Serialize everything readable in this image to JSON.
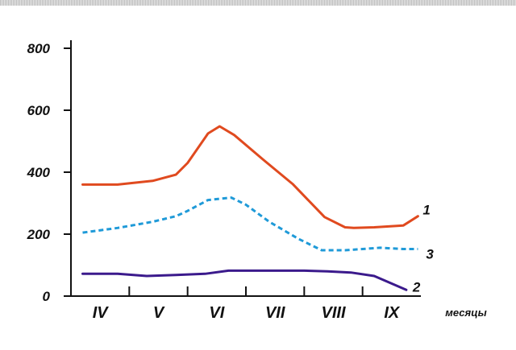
{
  "chart_data": {
    "type": "line",
    "xlabel": "месяцы",
    "ylabel": "",
    "ylim": [
      0,
      800
    ],
    "yticks": [
      0,
      200,
      400,
      600,
      800
    ],
    "categories": [
      "IV",
      "V",
      "VI",
      "VII",
      "VIII",
      "IX"
    ],
    "xlim": [
      0,
      6
    ],
    "grid": false,
    "series": [
      {
        "name": "1",
        "color": "#e04a1f",
        "style": "solid",
        "x": [
          0.2,
          0.8,
          1.4,
          1.8,
          2.0,
          2.35,
          2.55,
          2.8,
          3.3,
          3.8,
          4.35,
          4.7,
          4.85,
          5.2,
          5.7,
          5.95
        ],
        "y": [
          360,
          360,
          372,
          392,
          430,
          525,
          548,
          520,
          440,
          362,
          255,
          222,
          220,
          222,
          228,
          258
        ]
      },
      {
        "name": "3",
        "color": "#1f9ad8",
        "style": "dashed",
        "x": [
          0.2,
          0.8,
          1.4,
          1.8,
          2.0,
          2.35,
          2.75,
          3.0,
          3.4,
          3.9,
          4.3,
          4.7,
          5.0,
          5.3,
          5.7,
          5.95
        ],
        "y": [
          205,
          220,
          240,
          258,
          275,
          310,
          318,
          295,
          240,
          185,
          148,
          148,
          152,
          156,
          152,
          152
        ]
      },
      {
        "name": "2",
        "color": "#3b1a8c",
        "style": "solid",
        "x": [
          0.2,
          0.8,
          1.3,
          1.8,
          2.3,
          2.7,
          3.3,
          4.0,
          4.4,
          4.8,
          5.2,
          5.75
        ],
        "y": [
          72,
          72,
          65,
          68,
          72,
          82,
          82,
          82,
          80,
          76,
          65,
          20
        ]
      }
    ]
  }
}
